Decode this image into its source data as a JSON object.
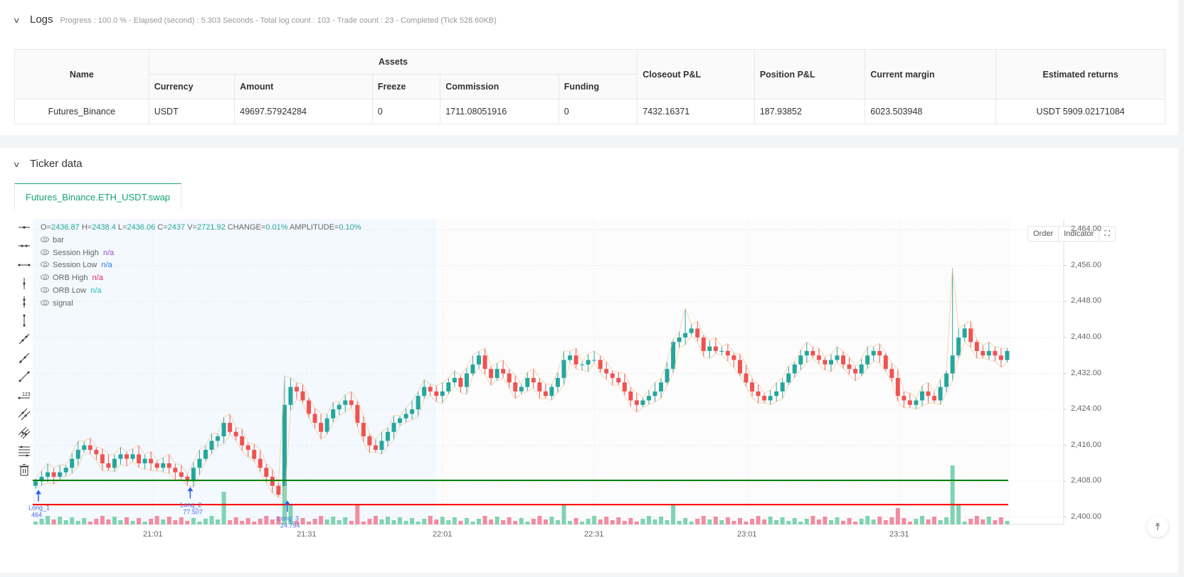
{
  "logs": {
    "title": "Logs",
    "status": "Progress : 100.0 % - Elapsed (second) : 5.303  Seconds - Total log count : 103 - Trade count : 23 - Completed (Tick 528.60KB)",
    "table": {
      "group_header": "Assets",
      "headers": {
        "name": "Name",
        "currency": "Currency",
        "amount": "Amount",
        "freeze": "Freeze",
        "commission": "Commission",
        "funding": "Funding",
        "closeout_pnl": "Closeout P&L",
        "position_pnl": "Position P&L",
        "current_margin": "Current margin",
        "estimated_returns": "Estimated returns"
      },
      "rows": [
        {
          "name": "Futures_Binance",
          "currency": "USDT",
          "amount": "49697.57924284",
          "freeze": "0",
          "commission": "1711.08051916",
          "funding": "0",
          "closeout_pnl": "7432.16371",
          "position_pnl": "187.93852",
          "current_margin": "6023.503948",
          "estimated_returns": "USDT 5909.02171084"
        }
      ]
    }
  },
  "ticker": {
    "title": "Ticker data",
    "tab_label": "Futures_Binance.ETH_USDT.swap",
    "ohlc": {
      "o_label": "O=",
      "o": "2436.87",
      "h_label": "H=",
      "h": "2438.4",
      "l_label": "L=",
      "l": "2436.06",
      "c_label": "C=",
      "c": "2437",
      "v_label": "V=",
      "v": "2721.92",
      "change_label": "CHANGE=",
      "change": "0.01%",
      "amplitude_label": "AMPLITUDE=",
      "amplitude": "0.10%"
    },
    "legend": [
      {
        "label": "bar",
        "value": "",
        "color": "#666666"
      },
      {
        "label": "Session High",
        "value": "n/a",
        "color": "#9c4fc9"
      },
      {
        "label": "Session Low",
        "value": "n/a",
        "color": "#2f7de1"
      },
      {
        "label": "ORB High",
        "value": "n/a",
        "color": "#e91e63"
      },
      {
        "label": "ORB Low",
        "value": "n/a",
        "color": "#1fc0c0"
      },
      {
        "label": "signal",
        "value": "",
        "color": "#666666"
      }
    ],
    "buttons": {
      "order": "Order",
      "indicator": "Indicator"
    },
    "colors": {
      "up": "#26a69a",
      "down": "#ef5350",
      "orb_high_line": "#008000",
      "orb_low_line": "#ff0000",
      "signal": "#2f5fe1"
    }
  },
  "chart_data": {
    "type": "candlestick",
    "title": "Futures_Binance.ETH_USDT.swap",
    "ylim": [
      2398,
      2466
    ],
    "y_ticks": [
      "2,464.00",
      "2,456.00",
      "2,448.00",
      "2,440.00",
      "2,432.00",
      "2,424.00",
      "2,416.00",
      "2,408.00",
      "2,400.00"
    ],
    "x_ticks": [
      "21:01",
      "21:31",
      "22:01",
      "22:31",
      "23:01",
      "23:31"
    ],
    "horizontal_lines": [
      {
        "name": "ORB High",
        "value": 2408.2,
        "color": "#008000"
      },
      {
        "name": "ORB Low",
        "value": 2402.8,
        "color": "#ff0000"
      }
    ],
    "annotations": [
      {
        "label": "Long_1",
        "price": "464",
        "x_index": 0
      },
      {
        "label": "Long_2",
        "price": "77.507",
        "x_index": 25
      },
      {
        "label": "Long_3",
        "price": "24.794",
        "x_index": 41
      }
    ],
    "closes": [
      2408,
      2409,
      2410,
      2409,
      2410,
      2411,
      2413,
      2415,
      2416,
      2415,
      2414,
      2412,
      2411,
      2413,
      2414,
      2413,
      2414,
      2412,
      2413,
      2412,
      2411,
      2412,
      2411,
      2410,
      2409,
      2408,
      2411,
      2413,
      2415,
      2417,
      2418,
      2421,
      2419,
      2418,
      2416,
      2415,
      2413,
      2411,
      2409,
      2407,
      2405,
      2425,
      2429,
      2428,
      2426,
      2423,
      2421,
      2419,
      2422,
      2424,
      2425,
      2426,
      2425,
      2421,
      2418,
      2416,
      2415,
      2417,
      2419,
      2421,
      2422,
      2423,
      2424,
      2427,
      2429,
      2428,
      2427,
      2428,
      2430,
      2431,
      2429,
      2432,
      2434,
      2436,
      2433,
      2431,
      2433,
      2432,
      2430,
      2428,
      2429,
      2431,
      2430,
      2428,
      2427,
      2429,
      2431,
      2435,
      2436,
      2434,
      2434,
      2435,
      2435,
      2433,
      2432,
      2431,
      2430,
      2428,
      2426,
      2425,
      2426,
      2427,
      2428,
      2430,
      2433,
      2439,
      2440,
      2441,
      2442,
      2440,
      2437,
      2438,
      2437,
      2437,
      2436,
      2435,
      2432,
      2430,
      2428,
      2427,
      2426,
      2427,
      2428,
      2430,
      2432,
      2434,
      2436,
      2437,
      2436,
      2435,
      2434,
      2435,
      2436,
      2434,
      2433,
      2432,
      2434,
      2436,
      2437,
      2436,
      2433,
      2431,
      2427,
      2426,
      2425,
      2426,
      2428,
      2427,
      2426,
      2429,
      2432,
      2436,
      2440,
      2442,
      2439,
      2437,
      2436,
      2437,
      2436,
      2435,
      2437
    ],
    "volume_note": "volume histogram at bottom, green=up red=down"
  }
}
